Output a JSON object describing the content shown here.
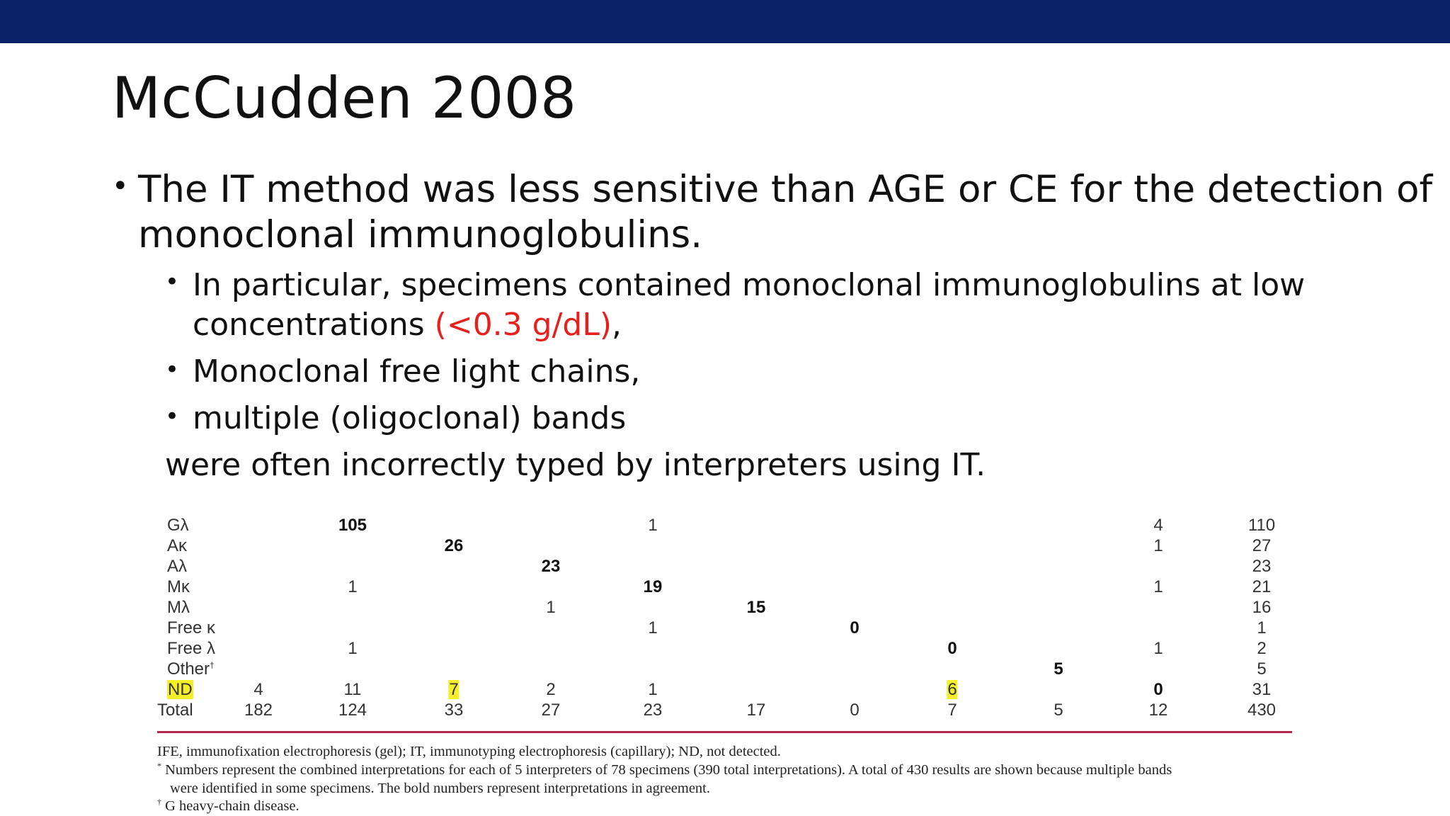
{
  "slide": {
    "title": "McCudden 2008",
    "bullet1_line1": "The IT method was less sensitive than AGE or CE for the detection of",
    "bullet1_line2": "monoclonal immunoglobulins.",
    "sub1_line1": "In particular, specimens contained monoclonal immunoglobulins at low",
    "sub1_line2_prefix": "concentrations ",
    "sub1_line2_red": "(<0.3 g/dL)",
    "sub1_line2_suffix": ",",
    "sub2": "Monoclonal free light chains,",
    "sub3": "multiple (oligoclonal) bands",
    "conclusion": "were often incorrectly typed by interpreters using IT.",
    "accent_color": "#e8201b",
    "bar_color": "#0b2266"
  },
  "table": {
    "rows": [
      {
        "label": "Gλ",
        "cells": [
          "",
          "105",
          "",
          "",
          "1",
          "",
          "",
          "",
          "",
          "4",
          "110"
        ]
      },
      {
        "label": "Aκ",
        "cells": [
          "",
          "",
          "26",
          "",
          "",
          "",
          "",
          "",
          "",
          "1",
          "27"
        ]
      },
      {
        "label": "Aλ",
        "cells": [
          "",
          "",
          "",
          "23",
          "",
          "",
          "",
          "",
          "",
          "",
          "23"
        ]
      },
      {
        "label": "Mκ",
        "cells": [
          "",
          "1",
          "",
          "",
          "19",
          "",
          "",
          "",
          "",
          "1",
          "21"
        ]
      },
      {
        "label": "Mλ",
        "cells": [
          "",
          "",
          "",
          "1",
          "",
          "15",
          "",
          "",
          "",
          "",
          "16"
        ]
      },
      {
        "label": "Free κ",
        "cells": [
          "",
          "",
          "",
          "",
          "1",
          "",
          "0",
          "",
          "",
          "",
          "1"
        ]
      },
      {
        "label": "Free λ",
        "cells": [
          "",
          "1",
          "",
          "",
          "",
          "",
          "",
          "0",
          "",
          "1",
          "2"
        ]
      },
      {
        "label": "Other",
        "label_sup": "†",
        "cells": [
          "",
          "",
          "",
          "",
          "",
          "",
          "",
          "",
          "5",
          "",
          "5"
        ]
      },
      {
        "label": "ND",
        "cells": [
          "4",
          "11",
          "7",
          "2",
          "1",
          "",
          "",
          "6",
          "",
          "0",
          "31"
        ]
      },
      {
        "label": "Total",
        "cells": [
          "182",
          "124",
          "33",
          "27",
          "23",
          "17",
          "0",
          "7",
          "5",
          "12",
          "430"
        ]
      }
    ],
    "highlight_color": "#f5ee2a",
    "rule_color": "#b5284e",
    "footnote1": "IFE, immunofixation electrophoresis (gel); IT, immunotyping electrophoresis (capillary); ND, not detected.",
    "footnote2_mark": "*",
    "footnote2_line1": "Numbers represent the combined interpretations for each of 5 interpreters of 78 specimens (390 total interpretations). A total of 430 results are shown because multiple bands",
    "footnote2_line2": "were identified in some specimens. The bold numbers represent interpretations in agreement.",
    "footnote3_mark": "†",
    "footnote3": "G heavy-chain disease."
  }
}
